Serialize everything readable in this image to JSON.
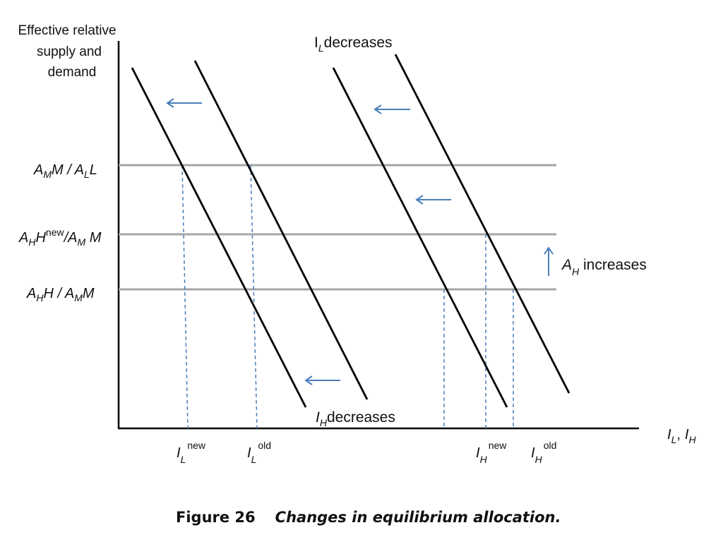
{
  "y_axis_title": [
    "Effective relative",
    "supply and",
    "demand"
  ],
  "x_axis_title": {
    "a": "I",
    "a_sub": "L",
    "sep": ",",
    "b": "I",
    "b_sub": "H"
  },
  "levels": {
    "top": {
      "p1": "A",
      "p1_sub": "M",
      "p2": "M / A",
      "p2_sub": "L",
      "p3": "L"
    },
    "middle": {
      "p1": "A",
      "p1_sub": "H",
      "p2": "H",
      "p2_sup": "new",
      "p3": "/A",
      "p3_sub": "M",
      "p4": " M"
    },
    "bottom": {
      "p1": "A",
      "p1_sub": "H",
      "p2": "H / A",
      "p2_sub": "M",
      "p3": "M"
    }
  },
  "annotations": {
    "il_decreases": {
      "main": "I",
      "sub": "L",
      "rest": "decreases"
    },
    "ih_decreases": {
      "main": "I",
      "sub": "H",
      "rest": "decreases"
    },
    "ah_increases": {
      "main": "A",
      "sub": "H",
      "rest": " increases"
    }
  },
  "x_ticks": {
    "il_new": {
      "main": "I",
      "sub": "L",
      "sup": "new"
    },
    "il_old": {
      "main": "I",
      "sub": "L",
      "sup": "old"
    },
    "ih_new": {
      "main": "I",
      "sub": "H",
      "sup": "new"
    },
    "ih_old": {
      "main": "I",
      "sub": "H",
      "sup": "old"
    }
  },
  "caption": {
    "number": "Figure 26",
    "text": "Changes in equilibrium allocation."
  },
  "colors": {
    "curve": "#000000",
    "level_line": "#a6a6a6",
    "dashed": "#4a7ebb",
    "arrow": "#4a7ebb"
  }
}
